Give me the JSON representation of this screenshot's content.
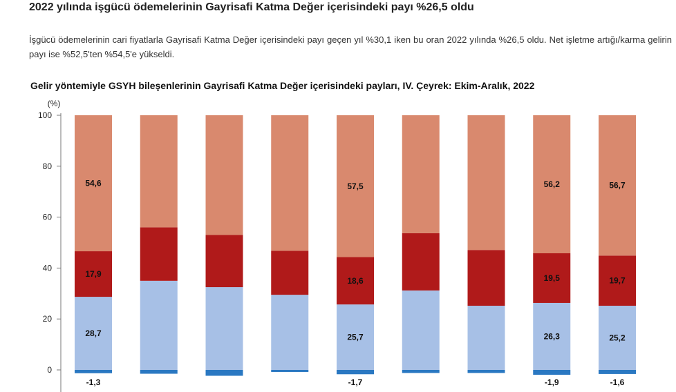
{
  "headline": "2022 yılında işgücü ödemelerinin Gayrisafi Katma Değer içerisindeki payı %26,5 oldu",
  "description": "İşgücü ödemelerinin cari fiyatlarla Gayrisafi Katma Değer içerisindeki payı geçen yıl %30,1 iken bu oran 2022 yılında %26,5 oldu. Net işletme artığı/karma gelirin payı ise %52,5'ten %54,5'e yükseldi.",
  "chart_data": {
    "type": "bar",
    "stacked": true,
    "title": "Gelir yöntemiyle GSYH bileşenlerinin Gayrisafi Katma Değer içerisindeki payları, IV. Çeyrek: Ekim-Aralık, 2022",
    "ylabel": "(%)",
    "ylim": [
      0,
      100
    ],
    "yticks": [
      0,
      20,
      40,
      60,
      80,
      100
    ],
    "grid": false,
    "colors": {
      "labor": "#a7c0e6",
      "taxes": "#b01a1a",
      "surplus": "#d9896e",
      "negative": "#2a78c2"
    },
    "segments": [
      {
        "key": "negative",
        "color_key": "negative",
        "values": [
          -1.3,
          -1.5,
          -2.3,
          -0.8,
          -1.7,
          -1.2,
          -1.2,
          -1.9,
          -1.6
        ]
      },
      {
        "key": "labor",
        "color_key": "labor",
        "values": [
          28.7,
          35.0,
          32.5,
          29.5,
          25.7,
          31.2,
          25.2,
          26.3,
          25.2
        ]
      },
      {
        "key": "taxes",
        "color_key": "taxes",
        "values": [
          17.9,
          21.0,
          20.5,
          17.3,
          18.6,
          22.5,
          21.9,
          19.5,
          19.7
        ]
      },
      {
        "key": "surplus",
        "color_key": "surplus",
        "values": [
          54.6,
          45.5,
          49.3,
          54.0,
          57.5,
          47.5,
          54.1,
          56.2,
          56.7
        ]
      }
    ],
    "data_labels": [
      {
        "bar": 0,
        "segment": "labor",
        "text": "28,7"
      },
      {
        "bar": 0,
        "segment": "taxes",
        "text": "17,9"
      },
      {
        "bar": 0,
        "segment": "surplus",
        "text": "54,6"
      },
      {
        "bar": 0,
        "segment": "negative",
        "text": "-1,3"
      },
      {
        "bar": 4,
        "segment": "labor",
        "text": "25,7"
      },
      {
        "bar": 4,
        "segment": "taxes",
        "text": "18,6"
      },
      {
        "bar": 4,
        "segment": "surplus",
        "text": "57,5"
      },
      {
        "bar": 4,
        "segment": "negative",
        "text": "-1,7"
      },
      {
        "bar": 7,
        "segment": "labor",
        "text": "26,3"
      },
      {
        "bar": 7,
        "segment": "taxes",
        "text": "19,5"
      },
      {
        "bar": 7,
        "segment": "surplus",
        "text": "56,2"
      },
      {
        "bar": 7,
        "segment": "negative",
        "text": "-1,9"
      },
      {
        "bar": 8,
        "segment": "labor",
        "text": "25,2"
      },
      {
        "bar": 8,
        "segment": "taxes",
        "text": "19,7"
      },
      {
        "bar": 8,
        "segment": "surplus",
        "text": "56,7"
      },
      {
        "bar": 8,
        "segment": "negative",
        "text": "-1,6"
      }
    ]
  }
}
